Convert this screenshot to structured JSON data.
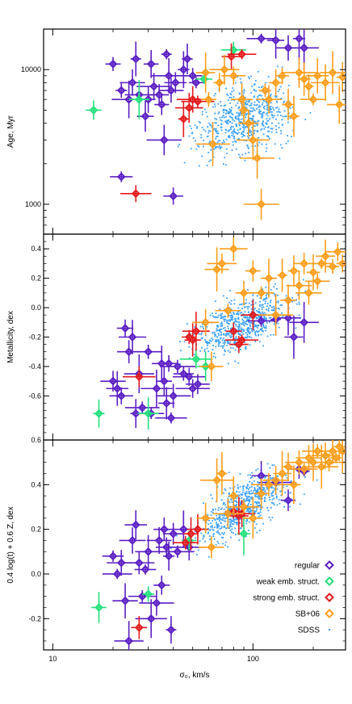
{
  "chart_data": {
    "type": "scatter",
    "xlabel": "σ₀, km/s",
    "xscale": "log",
    "xlim": [
      9,
      290
    ],
    "xticks": [
      10,
      100
    ],
    "legend_position": "bottom-right",
    "panels": [
      {
        "ylabel": "Age, Myr",
        "yscale": "log",
        "ylim": [
          600,
          20000
        ],
        "yticks": [
          1000,
          10000
        ],
        "series": [
          {
            "name": "regular",
            "color": "#5b1fc4",
            "marker": "diamond",
            "points": [
              [
                20,
                11000
              ],
              [
                22,
                7000
              ],
              [
                22,
                1600
              ],
              [
                24,
                6000
              ],
              [
                25,
                8000
              ],
              [
                26,
                12000
              ],
              [
                27,
                6500
              ],
              [
                29,
                4500
              ],
              [
                30,
                6000
              ],
              [
                31,
                11000
              ],
              [
                32,
                7500
              ],
              [
                34,
                6500
              ],
              [
                35,
                5500
              ],
              [
                36,
                3000
              ],
              [
                37,
                13000
              ],
              [
                38,
                9000
              ],
              [
                39,
                7000
              ],
              [
                40,
                1150
              ],
              [
                41,
                8000
              ],
              [
                45,
                10000
              ],
              [
                47,
                12000
              ],
              [
                50,
                9000
              ],
              [
                52,
                8000
              ],
              [
                110,
                17000
              ],
              [
                130,
                16500
              ],
              [
                150,
                14500
              ],
              [
                170,
                17000
              ],
              [
                180,
                14500
              ]
            ]
          },
          {
            "name": "weak emb. struct.",
            "color": "#22e07a",
            "marker": "diamond",
            "points": [
              [
                16,
                5000
              ],
              [
                27,
                6000
              ],
              [
                57,
                8500
              ],
              [
                80,
                14000
              ]
            ]
          },
          {
            "name": "strong emb. struct.",
            "color": "#e31a1c",
            "marker": "diamond",
            "points": [
              [
                26,
                1200
              ],
              [
                45,
                4300
              ],
              [
                48,
                5200
              ],
              [
                50,
                6000
              ],
              [
                53,
                5800
              ],
              [
                78,
                12500
              ],
              [
                88,
                13000
              ]
            ]
          },
          {
            "name": "SB+06",
            "color": "#ff9e1b",
            "marker": "diamond",
            "points": [
              [
                58,
                9500
              ],
              [
                60,
                6000
              ],
              [
                63,
                2800
              ],
              [
                68,
                8000
              ],
              [
                72,
                10000
              ],
              [
                80,
                9000
              ],
              [
                88,
                6000
              ],
              [
                90,
                5000
              ],
              [
                95,
                4000
              ],
              [
                100,
                3000
              ],
              [
                105,
                2200
              ],
              [
                110,
                1000
              ],
              [
                115,
                7000
              ],
              [
                120,
                6000
              ],
              [
                130,
                8000
              ],
              [
                140,
                9000
              ],
              [
                150,
                5500
              ],
              [
                160,
                4500
              ],
              [
                170,
                9500
              ],
              [
                180,
                8500
              ],
              [
                190,
                7500
              ],
              [
                200,
                6000
              ],
              [
                210,
                9000
              ],
              [
                230,
                8000
              ],
              [
                250,
                9500
              ],
              [
                270,
                5500
              ],
              [
                280,
                8800
              ]
            ]
          }
        ]
      },
      {
        "ylabel": "Metallicity, dex",
        "yscale": "linear",
        "ylim": [
          -0.9,
          0.5
        ],
        "yticks": [
          -0.6,
          -0.4,
          -0.2,
          0.0,
          0.2,
          0.4
        ],
        "series": [
          {
            "name": "regular",
            "color": "#5b1fc4",
            "marker": "diamond",
            "points": [
              [
                20,
                -0.5
              ],
              [
                21,
                -0.55
              ],
              [
                22,
                -0.6
              ],
              [
                23,
                -0.14
              ],
              [
                24,
                -0.3
              ],
              [
                25,
                -0.2
              ],
              [
                26,
                -0.72
              ],
              [
                27,
                -0.45
              ],
              [
                28,
                -0.68
              ],
              [
                30,
                -0.3
              ],
              [
                31,
                -0.72
              ],
              [
                33,
                -0.55
              ],
              [
                35,
                -0.38
              ],
              [
                36,
                -0.5
              ],
              [
                37,
                -0.65
              ],
              [
                38,
                -0.38
              ],
              [
                39,
                -0.75
              ],
              [
                40,
                -0.6
              ],
              [
                42,
                -0.4
              ],
              [
                45,
                -0.45
              ],
              [
                48,
                -0.47
              ],
              [
                50,
                -0.55
              ],
              [
                53,
                -0.52
              ],
              [
                110,
                -0.09
              ],
              [
                130,
                -0.08
              ],
              [
                150,
                -0.07
              ],
              [
                160,
                -0.2
              ],
              [
                180,
                -0.1
              ]
            ]
          },
          {
            "name": "weak emb. struct.",
            "color": "#22e07a",
            "marker": "diamond",
            "points": [
              [
                17,
                -0.72
              ],
              [
                30,
                -0.72
              ],
              [
                52,
                -0.35
              ],
              [
                58,
                -0.4
              ]
            ]
          },
          {
            "name": "strong emb. struct.",
            "color": "#e31a1c",
            "marker": "diamond",
            "points": [
              [
                27,
                -0.47
              ],
              [
                48,
                -0.2
              ],
              [
                50,
                -0.22
              ],
              [
                52,
                -0.16
              ],
              [
                80,
                -0.16
              ],
              [
                85,
                -0.25
              ],
              [
                88,
                -0.22
              ],
              [
                100,
                -0.05
              ]
            ]
          },
          {
            "name": "SB+06",
            "color": "#ff9e1b",
            "marker": "diamond",
            "points": [
              [
                58,
                -0.1
              ],
              [
                62,
                -0.4
              ],
              [
                66,
                0.26
              ],
              [
                70,
                0.3
              ],
              [
                75,
                -0.02
              ],
              [
                80,
                0.4
              ],
              [
                90,
                0.1
              ],
              [
                100,
                0.25
              ],
              [
                110,
                0.1
              ],
              [
                120,
                0.2
              ],
              [
                130,
                -0.05
              ],
              [
                140,
                0.22
              ],
              [
                150,
                0.05
              ],
              [
                160,
                0.25
              ],
              [
                170,
                0.15
              ],
              [
                180,
                0.3
              ],
              [
                190,
                0.1
              ],
              [
                200,
                0.24
              ],
              [
                210,
                0.18
              ],
              [
                220,
                0.3
              ],
              [
                230,
                0.35
              ],
              [
                250,
                0.28
              ],
              [
                265,
                0.38
              ],
              [
                280,
                0.3
              ]
            ]
          }
        ]
      },
      {
        "ylabel": "0.4 log(t) + 0.6 Z, dex",
        "yscale": "linear",
        "ylim": [
          -0.34,
          0.6
        ],
        "yticks": [
          -0.2,
          0.0,
          0.2,
          0.4,
          0.6
        ],
        "series": [
          {
            "name": "regular",
            "color": "#5b1fc4",
            "marker": "diamond",
            "points": [
              [
                20,
                0.08
              ],
              [
                21,
                0.0
              ],
              [
                22,
                0.05
              ],
              [
                23,
                -0.12
              ],
              [
                24,
                -0.3
              ],
              [
                25,
                0.15
              ],
              [
                26,
                0.22
              ],
              [
                27,
                0.05
              ],
              [
                28,
                -0.1
              ],
              [
                29,
                0.02
              ],
              [
                30,
                0.1
              ],
              [
                31,
                -0.2
              ],
              [
                33,
                -0.13
              ],
              [
                34,
                0.15
              ],
              [
                35,
                -0.05
              ],
              [
                36,
                0.2
              ],
              [
                37,
                0.12
              ],
              [
                38,
                0.08
              ],
              [
                39,
                -0.25
              ],
              [
                40,
                0.18
              ],
              [
                42,
                0.1
              ],
              [
                45,
                0.2
              ],
              [
                48,
                0.12
              ],
              [
                110,
                0.44
              ],
              [
                130,
                0.41
              ],
              [
                150,
                0.33
              ],
              [
                170,
                0.47
              ],
              [
                180,
                0.46
              ]
            ]
          },
          {
            "name": "weak emb. struct.",
            "color": "#22e07a",
            "marker": "diamond",
            "points": [
              [
                17,
                -0.15
              ],
              [
                30,
                -0.09
              ],
              [
                48,
                0.15
              ],
              [
                90,
                0.18
              ]
            ]
          },
          {
            "name": "strong emb. struct.",
            "color": "#e31a1c",
            "marker": "diamond",
            "points": [
              [
                27,
                -0.24
              ],
              [
                46,
                0.14
              ],
              [
                49,
                0.18
              ],
              [
                53,
                0.2
              ],
              [
                80,
                0.28
              ],
              [
                85,
                0.26
              ],
              [
                88,
                0.27
              ]
            ]
          },
          {
            "name": "SB+06",
            "color": "#ff9e1b",
            "marker": "diamond",
            "points": [
              [
                58,
                0.25
              ],
              [
                62,
                0.12
              ],
              [
                66,
                0.42
              ],
              [
                70,
                0.45
              ],
              [
                75,
                0.27
              ],
              [
                80,
                0.35
              ],
              [
                90,
                0.3
              ],
              [
                100,
                0.25
              ],
              [
                110,
                0.36
              ],
              [
                120,
                0.4
              ],
              [
                130,
                0.42
              ],
              [
                140,
                0.45
              ],
              [
                150,
                0.48
              ],
              [
                160,
                0.4
              ],
              [
                170,
                0.5
              ],
              [
                180,
                0.47
              ],
              [
                190,
                0.52
              ],
              [
                200,
                0.5
              ],
              [
                210,
                0.55
              ],
              [
                220,
                0.48
              ],
              [
                230,
                0.53
              ],
              [
                240,
                0.5
              ],
              [
                250,
                0.55
              ],
              [
                260,
                0.52
              ],
              [
                270,
                0.57
              ],
              [
                280,
                0.55
              ]
            ]
          }
        ]
      }
    ],
    "legend": [
      {
        "label": "regular",
        "color": "#5b1fc4",
        "marker": "diamond"
      },
      {
        "label": "weak emb. struct.",
        "color": "#22e07a",
        "marker": "diamond"
      },
      {
        "label": "strong emb. struct.",
        "color": "#e31a1c",
        "marker": "diamond"
      },
      {
        "label": "SB+06",
        "color": "#ff9e1b",
        "marker": "diamond"
      },
      {
        "label": "SDSS",
        "color": "#3aa0ff",
        "marker": "dot"
      }
    ],
    "sdss": {
      "name": "SDSS",
      "color": "#3aa0ff",
      "note_points": 1000
    }
  }
}
